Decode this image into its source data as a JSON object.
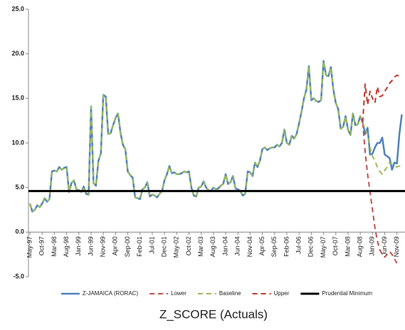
{
  "chart_data": {
    "type": "line",
    "title": "Z_SCORE (Actuals)",
    "categories": [
      "May-97",
      null,
      null,
      null,
      null,
      "Oct-97",
      null,
      null,
      null,
      null,
      "Mar-98",
      null,
      null,
      null,
      null,
      "Aug-98",
      null,
      null,
      null,
      null,
      "Jan-99",
      null,
      null,
      null,
      null,
      "Jun-99",
      null,
      null,
      null,
      null,
      "Nov-99",
      null,
      null,
      null,
      null,
      "Apr-00",
      null,
      null,
      null,
      null,
      "Sep-00",
      null,
      null,
      null,
      null,
      "Feb-01",
      null,
      null,
      null,
      null,
      "Jul-01",
      null,
      null,
      null,
      null,
      "Dec-01",
      null,
      null,
      null,
      null,
      "May-02",
      null,
      null,
      null,
      null,
      "Oct-02",
      null,
      null,
      null,
      null,
      "Mar-03",
      null,
      null,
      null,
      null,
      "Aug-03",
      null,
      null,
      null,
      null,
      "Jan-04",
      null,
      null,
      null,
      null,
      "Jun-04",
      null,
      null,
      null,
      null,
      "Nov-04",
      null,
      null,
      null,
      null,
      "Apr-05",
      null,
      null,
      null,
      null,
      "Sep-05",
      null,
      null,
      null,
      null,
      "Feb-06",
      null,
      null,
      null,
      null,
      "Jul-06",
      null,
      null,
      null,
      null,
      "Dec-06",
      null,
      null,
      null,
      null,
      "May-07",
      null,
      null,
      null,
      null,
      "Oct-07",
      null,
      null,
      null,
      null,
      "Mar-08",
      null,
      null,
      null,
      null,
      "Aug-08",
      null,
      null,
      null,
      null,
      "Jan-09",
      null,
      null,
      null,
      null,
      "Jun-09",
      null,
      null,
      null,
      null,
      "Nov-09",
      null,
      null,
      null
    ],
    "series": [
      {
        "name": "Z-JAMAICA (RORAC)",
        "color": "#4f81bd",
        "dashed": false,
        "values": [
          3.2,
          2.3,
          2.5,
          3.0,
          2.8,
          3.2,
          3.8,
          3.4,
          3.7,
          6.8,
          6.9,
          6.8,
          7.3,
          7.0,
          7.2,
          7.3,
          4.5,
          5.5,
          5.8,
          4.8,
          4.7,
          4.5,
          5.1,
          4.3,
          4.2,
          14.1,
          5.5,
          5.2,
          8.0,
          8.8,
          15.4,
          15.2,
          11.0,
          11.1,
          12.0,
          12.8,
          13.3,
          11.2,
          9.8,
          9.3,
          6.8,
          6.4,
          6.1,
          3.9,
          3.8,
          3.7,
          4.8,
          5.0,
          5.6,
          4.0,
          4.2,
          4.1,
          3.9,
          4.3,
          4.6,
          5.8,
          6.5,
          7.4,
          6.6,
          6.7,
          6.5,
          6.5,
          6.6,
          6.8,
          6.7,
          6.8,
          5.0,
          4.1,
          4.0,
          5.0,
          5.1,
          5.7,
          5.0,
          4.7,
          4.6,
          5.0,
          4.8,
          4.9,
          5.2,
          5.4,
          6.5,
          5.4,
          5.6,
          6.3,
          4.9,
          4.8,
          4.6,
          4.1,
          4.3,
          6.8,
          6.7,
          6.3,
          7.8,
          7.3,
          8.0,
          9.3,
          9.5,
          9.2,
          9.4,
          9.5,
          9.5,
          9.8,
          9.6,
          10.0,
          11.5,
          10.0,
          9.8,
          10.8,
          10.5,
          11.0,
          12.2,
          13.5,
          15.0,
          16.0,
          18.6,
          14.8,
          15.0,
          14.7,
          14.6,
          14.8,
          19.2,
          17.6,
          17.5,
          18.5,
          16.0,
          14.5,
          13.8,
          11.6,
          11.8,
          13.0,
          11.5,
          10.9,
          13.3,
          12.0,
          12.1,
          13.0,
          12.3,
          11.0,
          11.7,
          8.7,
          8.8,
          9.5,
          10.0,
          10.0,
          10.6,
          8.7,
          8.5,
          8.3,
          7.0,
          7.8,
          7.7,
          11.0,
          13.2,
          null
        ]
      },
      {
        "name": "Lower",
        "color": "#c0504d",
        "dashed": true,
        "values": [
          null,
          null,
          null,
          null,
          null,
          null,
          null,
          null,
          null,
          null,
          null,
          null,
          null,
          null,
          null,
          null,
          null,
          null,
          null,
          null,
          null,
          null,
          null,
          null,
          null,
          null,
          null,
          null,
          null,
          null,
          null,
          null,
          null,
          null,
          null,
          null,
          null,
          null,
          null,
          null,
          null,
          null,
          null,
          null,
          null,
          null,
          null,
          null,
          null,
          null,
          null,
          null,
          null,
          null,
          null,
          null,
          null,
          null,
          null,
          null,
          null,
          null,
          null,
          null,
          null,
          null,
          null,
          null,
          null,
          null,
          null,
          null,
          null,
          null,
          null,
          null,
          null,
          null,
          null,
          null,
          null,
          null,
          null,
          null,
          null,
          null,
          null,
          null,
          null,
          null,
          null,
          null,
          null,
          null,
          null,
          null,
          null,
          null,
          null,
          null,
          null,
          null,
          null,
          null,
          null,
          null,
          null,
          null,
          null,
          null,
          null,
          null,
          null,
          null,
          null,
          null,
          null,
          null,
          null,
          null,
          null,
          null,
          null,
          null,
          null,
          null,
          null,
          null,
          null,
          null,
          null,
          null,
          null,
          null,
          null,
          null,
          12.3,
          9.0,
          6.5,
          4.5,
          2.5,
          0.5,
          -1.0,
          -2.0,
          -2.5,
          -2.8,
          -2.5,
          -2.2,
          -2.5,
          -3.0,
          -3.5,
          null,
          null,
          null
        ]
      },
      {
        "name": "Baseline",
        "color": "#9bbb59",
        "dashed": true,
        "values": [
          3.2,
          2.3,
          2.5,
          3.0,
          2.8,
          3.2,
          3.8,
          3.4,
          3.7,
          6.8,
          6.9,
          6.8,
          7.3,
          7.0,
          7.2,
          7.3,
          4.5,
          5.5,
          5.8,
          4.8,
          4.7,
          4.5,
          5.1,
          4.3,
          4.2,
          14.1,
          5.5,
          5.2,
          8.0,
          8.8,
          15.4,
          15.2,
          11.0,
          11.1,
          12.0,
          12.8,
          13.3,
          11.2,
          9.8,
          9.3,
          6.8,
          6.4,
          6.1,
          3.9,
          3.8,
          3.7,
          4.8,
          5.0,
          5.6,
          4.0,
          4.2,
          4.1,
          3.9,
          4.3,
          4.6,
          5.8,
          6.5,
          7.4,
          6.6,
          6.7,
          6.5,
          6.5,
          6.6,
          6.8,
          6.7,
          6.8,
          5.0,
          4.1,
          4.0,
          5.0,
          5.1,
          5.7,
          5.0,
          4.7,
          4.6,
          5.0,
          4.8,
          4.9,
          5.2,
          5.4,
          6.5,
          5.4,
          5.6,
          6.3,
          4.9,
          4.8,
          4.6,
          4.1,
          4.3,
          6.8,
          6.7,
          6.3,
          7.8,
          7.3,
          8.0,
          9.3,
          9.5,
          9.2,
          9.4,
          9.5,
          9.5,
          9.8,
          9.6,
          10.0,
          11.5,
          10.0,
          9.8,
          10.8,
          10.5,
          11.0,
          12.2,
          13.5,
          15.0,
          16.0,
          18.6,
          14.8,
          15.0,
          14.7,
          14.6,
          14.8,
          19.2,
          17.6,
          17.5,
          18.5,
          16.0,
          14.5,
          13.8,
          11.6,
          11.8,
          13.0,
          11.5,
          10.9,
          13.3,
          12.0,
          12.1,
          13.0,
          12.3,
          11.5,
          11.0,
          9.5,
          8.5,
          8.0,
          7.3,
          6.8,
          6.5,
          6.9,
          7.3,
          7.8,
          7.6,
          7.4,
          7.3,
          7.4,
          7.5,
          null
        ]
      },
      {
        "name": "Upper",
        "color": "#c0392b",
        "dashed": true,
        "values": [
          null,
          null,
          null,
          null,
          null,
          null,
          null,
          null,
          null,
          null,
          null,
          null,
          null,
          null,
          null,
          null,
          null,
          null,
          null,
          null,
          null,
          null,
          null,
          null,
          null,
          null,
          null,
          null,
          null,
          null,
          null,
          null,
          null,
          null,
          null,
          null,
          null,
          null,
          null,
          null,
          null,
          null,
          null,
          null,
          null,
          null,
          null,
          null,
          null,
          null,
          null,
          null,
          null,
          null,
          null,
          null,
          null,
          null,
          null,
          null,
          null,
          null,
          null,
          null,
          null,
          null,
          null,
          null,
          null,
          null,
          null,
          null,
          null,
          null,
          null,
          null,
          null,
          null,
          null,
          null,
          null,
          null,
          null,
          null,
          null,
          null,
          null,
          null,
          null,
          null,
          null,
          null,
          null,
          null,
          null,
          null,
          null,
          null,
          null,
          null,
          null,
          null,
          null,
          null,
          null,
          null,
          null,
          null,
          null,
          null,
          null,
          null,
          null,
          null,
          null,
          null,
          null,
          null,
          null,
          null,
          null,
          null,
          null,
          null,
          null,
          null,
          null,
          null,
          null,
          null,
          null,
          null,
          null,
          null,
          null,
          null,
          12.3,
          16.6,
          14.3,
          15.8,
          15.0,
          14.5,
          16.3,
          15.2,
          15.3,
          15.8,
          16.2,
          16.7,
          17.0,
          17.4,
          17.6,
          17.5,
          null,
          null
        ]
      },
      {
        "name": "Prudential Minimum",
        "color": "#000000",
        "dashed": false,
        "value": 4.6
      }
    ],
    "ylim": [
      -5,
      25
    ],
    "yticks": [
      {
        "value": -5,
        "label": "-5.0"
      },
      {
        "value": 0,
        "label": "0.0"
      },
      {
        "value": 5,
        "label": "5.0"
      },
      {
        "value": 10,
        "label": "10.0"
      },
      {
        "value": 15,
        "label": "15.0"
      },
      {
        "value": 20,
        "label": "20.0"
      },
      {
        "value": 25,
        "label": "25.0"
      }
    ],
    "grid": false,
    "legend": "bottom"
  }
}
